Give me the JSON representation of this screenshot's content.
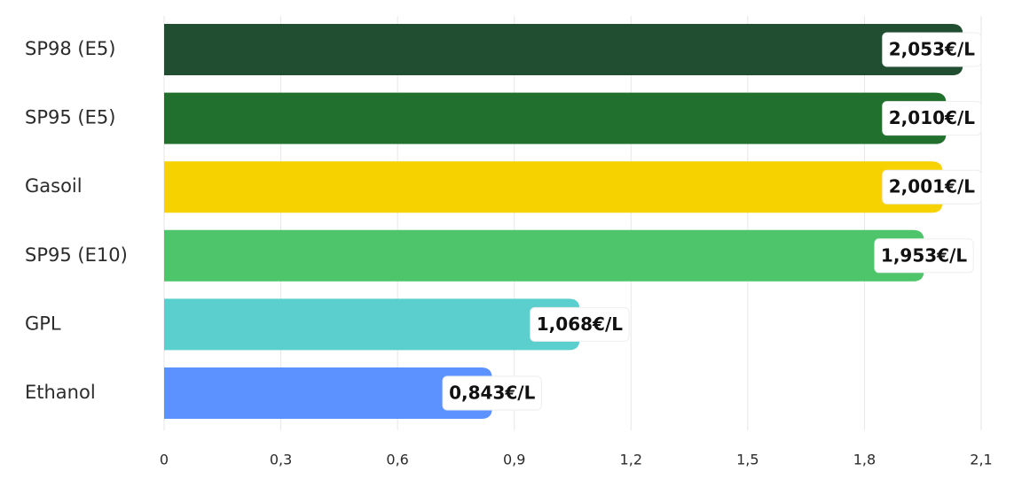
{
  "chart_data": {
    "type": "bar",
    "orientation": "horizontal",
    "categories": [
      "SP98 (E5)",
      "SP95 (E5)",
      "Gasoil",
      "SP95 (E10)",
      "GPL",
      "Ethanol"
    ],
    "values": [
      2.053,
      2.01,
      2.001,
      1.953,
      1.068,
      0.843
    ],
    "value_labels": [
      "2,053€/L",
      "2,010€/L",
      "2,001€/L",
      "1,953€/L",
      "1,068€/L",
      "0,843€/L"
    ],
    "colors": [
      "#214d31",
      "#22702d",
      "#f5d200",
      "#4ec56b",
      "#5bcfcd",
      "#5b92ff"
    ],
    "xlim": [
      0,
      2.1
    ],
    "xticks": [
      0,
      {
        "value": 0.3,
        "label": "0,3"
      },
      {
        "value": 0.6,
        "label": "0,6"
      },
      {
        "value": 0.9,
        "label": "0,9"
      },
      {
        "value": 1.2,
        "label": "1,2"
      },
      {
        "value": 1.5,
        "label": "1,5"
      },
      {
        "value": 1.8,
        "label": "1,8"
      },
      {
        "value": 2.1,
        "label": "2,1"
      }
    ],
    "grid": true
  }
}
